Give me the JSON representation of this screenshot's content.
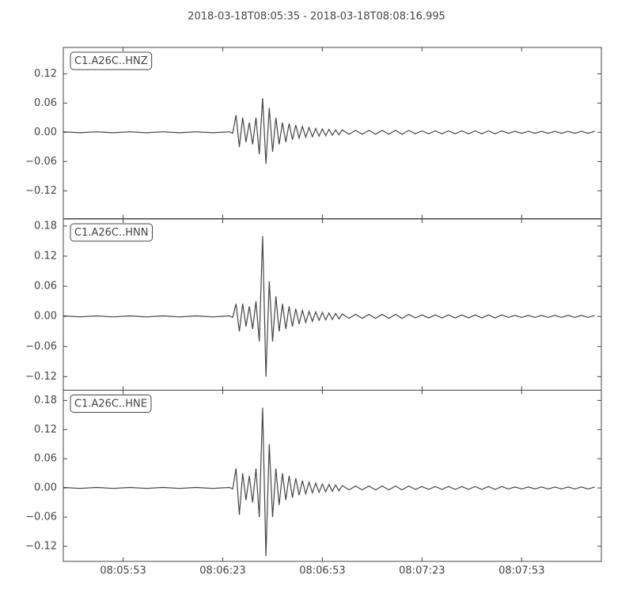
{
  "chart_data": {
    "type": "line",
    "layout": "stacked-panels",
    "title": "2018-03-18T08:05:35  -  2018-03-18T08:08:16.995",
    "xlim": [
      "08:05:35",
      "08:08:16.995"
    ],
    "xticks": [
      "08:05:53",
      "08:06:23",
      "08:06:53",
      "08:07:23",
      "08:07:53"
    ],
    "x": [
      "08:05:35",
      "08:05:40",
      "08:05:45",
      "08:05:50",
      "08:05:55",
      "08:06:00",
      "08:06:05",
      "08:06:10",
      "08:06:15",
      "08:06:20",
      "08:06:25",
      "08:06:26",
      "08:06:27",
      "08:06:28",
      "08:06:29",
      "08:06:30",
      "08:06:31",
      "08:06:32",
      "08:06:33",
      "08:06:34",
      "08:06:35",
      "08:06:36",
      "08:06:37",
      "08:06:38",
      "08:06:39",
      "08:06:40",
      "08:06:41",
      "08:06:42",
      "08:06:43",
      "08:06:44",
      "08:06:45",
      "08:06:46",
      "08:06:47",
      "08:06:48",
      "08:06:49",
      "08:06:50",
      "08:06:51",
      "08:06:52",
      "08:06:53",
      "08:06:54",
      "08:06:55",
      "08:06:56",
      "08:06:57",
      "08:06:58",
      "08:06:59",
      "08:07:01",
      "08:07:03",
      "08:07:05",
      "08:07:07",
      "08:07:09",
      "08:07:11",
      "08:07:13",
      "08:07:15",
      "08:07:17",
      "08:07:19",
      "08:07:21",
      "08:07:23",
      "08:07:25",
      "08:07:27",
      "08:07:29",
      "08:07:31",
      "08:07:33",
      "08:07:35",
      "08:07:37",
      "08:07:39",
      "08:07:41",
      "08:07:43",
      "08:07:45",
      "08:07:47",
      "08:07:49",
      "08:07:51",
      "08:07:53",
      "08:07:55",
      "08:07:57",
      "08:07:59",
      "08:08:01",
      "08:08:03",
      "08:08:05",
      "08:08:07",
      "08:08:09",
      "08:08:11",
      "08:08:13",
      "08:08:15"
    ],
    "series": [
      {
        "name": "C1.A26C..HNZ",
        "color": "#444444",
        "ylim": [
          -0.177,
          0.174
        ],
        "yticks": [
          {
            "value": -0.12,
            "label": "−0.12"
          },
          {
            "value": -0.06,
            "label": "−0.06"
          },
          {
            "value": 0,
            "label": "0.00"
          },
          0.06,
          0.12
        ],
        "values": [
          0.001,
          -0.001,
          0.001,
          -0.001,
          0.001,
          -0.001,
          0.001,
          -0.001,
          0.001,
          -0.001,
          0.001,
          -0.002,
          0.035,
          -0.03,
          0.03,
          -0.02,
          0.02,
          -0.025,
          0.03,
          -0.045,
          0.07,
          -0.065,
          0.05,
          -0.04,
          0.03,
          -0.025,
          0.02,
          -0.02,
          0.018,
          -0.015,
          0.015,
          -0.012,
          0.012,
          -0.01,
          0.01,
          -0.009,
          0.008,
          -0.008,
          0.007,
          -0.007,
          0.006,
          -0.006,
          0.005,
          -0.005,
          0.005,
          -0.004,
          0.004,
          -0.004,
          0.004,
          -0.004,
          0.004,
          -0.004,
          0.004,
          -0.004,
          0.004,
          -0.003,
          0.003,
          -0.003,
          0.003,
          -0.003,
          0.003,
          -0.003,
          0.003,
          -0.003,
          0.003,
          -0.003,
          0.003,
          -0.003,
          0.003,
          -0.002,
          0.002,
          -0.002,
          0.002,
          -0.002,
          0.002,
          -0.002,
          0.002,
          -0.002,
          0.002,
          -0.002,
          0.002,
          -0.002,
          0.002
        ]
      },
      {
        "name": "C1.A26C..HNN",
        "color": "#444444",
        "ylim": [
          -0.147,
          0.194
        ],
        "yticks": [
          {
            "value": -0.12,
            "label": "−0.12"
          },
          {
            "value": -0.06,
            "label": "−0.06"
          },
          {
            "value": 0,
            "label": "0.00"
          },
          0.06,
          0.12,
          0.18
        ],
        "values": [
          0.001,
          -0.001,
          0.001,
          -0.001,
          0.001,
          -0.001,
          0.001,
          -0.001,
          0.001,
          -0.001,
          0.001,
          -0.002,
          0.025,
          -0.03,
          0.025,
          -0.02,
          0.02,
          -0.025,
          0.03,
          -0.05,
          0.16,
          -0.12,
          0.07,
          -0.05,
          0.04,
          -0.03,
          0.025,
          -0.025,
          0.02,
          -0.02,
          0.015,
          -0.015,
          0.012,
          -0.012,
          0.01,
          -0.01,
          0.009,
          -0.008,
          0.008,
          -0.007,
          0.007,
          -0.006,
          0.006,
          -0.005,
          0.005,
          -0.004,
          0.004,
          -0.004,
          0.004,
          -0.004,
          0.004,
          -0.004,
          0.004,
          -0.004,
          0.004,
          -0.003,
          0.003,
          -0.003,
          0.003,
          -0.003,
          0.003,
          -0.003,
          0.003,
          -0.003,
          0.003,
          -0.003,
          0.003,
          -0.003,
          0.003,
          -0.002,
          0.002,
          -0.002,
          0.002,
          -0.002,
          0.002,
          -0.002,
          0.002,
          -0.002,
          0.002,
          -0.002,
          0.002,
          -0.002,
          0.002
        ]
      },
      {
        "name": "C1.A26C..HNE",
        "color": "#444444",
        "ylim": [
          -0.151,
          0.201
        ],
        "yticks": [
          {
            "value": -0.12,
            "label": "−0.12"
          },
          {
            "value": -0.06,
            "label": "−0.06"
          },
          {
            "value": 0,
            "label": "0.00"
          },
          0.06,
          0.12,
          0.18
        ],
        "values": [
          0.001,
          -0.001,
          0.001,
          -0.001,
          0.001,
          -0.001,
          0.001,
          -0.001,
          0.001,
          -0.001,
          0.001,
          -0.002,
          0.04,
          -0.055,
          0.03,
          -0.025,
          0.025,
          -0.03,
          0.04,
          -0.06,
          0.165,
          -0.14,
          0.09,
          -0.06,
          0.04,
          -0.035,
          0.03,
          -0.025,
          0.025,
          -0.02,
          0.02,
          -0.015,
          0.015,
          -0.012,
          0.012,
          -0.01,
          0.01,
          -0.009,
          0.008,
          -0.008,
          0.007,
          -0.007,
          0.006,
          -0.006,
          0.005,
          -0.004,
          0.004,
          -0.004,
          0.004,
          -0.004,
          0.004,
          -0.004,
          0.004,
          -0.004,
          0.004,
          -0.003,
          0.003,
          -0.003,
          0.003,
          -0.003,
          0.003,
          -0.003,
          0.003,
          -0.003,
          0.003,
          -0.003,
          0.003,
          -0.003,
          0.003,
          -0.002,
          0.002,
          -0.002,
          0.002,
          -0.002,
          0.002,
          -0.002,
          0.002,
          -0.002,
          0.002,
          -0.002,
          0.002,
          -0.002,
          0.002
        ]
      }
    ]
  }
}
